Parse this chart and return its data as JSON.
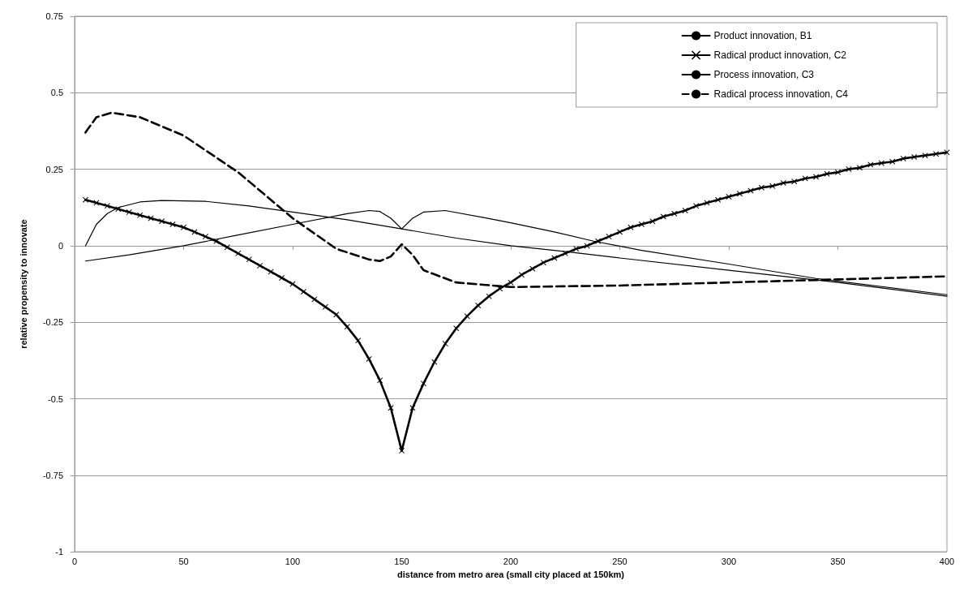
{
  "chart_data": {
    "type": "line",
    "xlabel": "distance from metro area (small city placed at 150km)",
    "ylabel": "relative propensity to innovate",
    "xlim": [
      0,
      400
    ],
    "xticks": [
      0,
      50,
      100,
      150,
      200,
      250,
      300,
      350,
      400
    ],
    "ylim": [
      -1,
      0.75
    ],
    "yticks": [
      -1,
      -0.75,
      -0.5,
      -0.25,
      0,
      0.25,
      0.5,
      0.75
    ],
    "grid": "y",
    "legend": "top right",
    "series": [
      {
        "name": "Product innovation, B1",
        "color": "#000000",
        "line_style": "solid",
        "marker": "none",
        "x": [
          5,
          10,
          15,
          20,
          30,
          40,
          60,
          80,
          100,
          125,
          150,
          175,
          200,
          226,
          250,
          300,
          350,
          400
        ],
        "values": [
          0.0,
          0.07,
          0.105,
          0.125,
          0.143,
          0.148,
          0.145,
          0.13,
          0.11,
          0.085,
          0.055,
          0.025,
          0.0,
          -0.02,
          -0.04,
          -0.08,
          -0.12,
          -0.165
        ]
      },
      {
        "name": "Radical product innovation, C2",
        "color": "#000000",
        "line_style": "solid",
        "marker": "cross",
        "x": [
          5,
          10,
          15,
          20,
          25,
          30,
          35,
          40,
          45,
          50,
          55,
          60,
          65,
          70,
          75,
          80,
          85,
          90,
          95,
          100,
          105,
          110,
          115,
          120,
          125,
          130,
          135,
          140,
          145,
          150,
          155,
          160,
          165,
          170,
          175,
          180,
          185,
          190,
          195,
          200,
          205,
          210,
          215,
          220,
          225,
          230,
          235,
          240,
          245,
          250,
          255,
          260,
          265,
          270,
          275,
          280,
          285,
          290,
          295,
          300,
          305,
          310,
          315,
          320,
          325,
          330,
          335,
          340,
          345,
          350,
          355,
          360,
          365,
          370,
          375,
          380,
          385,
          390,
          395,
          400
        ],
        "values": [
          0.15,
          0.14,
          0.13,
          0.12,
          0.11,
          0.1,
          0.09,
          0.08,
          0.07,
          0.06,
          0.045,
          0.03,
          0.015,
          -0.005,
          -0.025,
          -0.045,
          -0.065,
          -0.085,
          -0.105,
          -0.125,
          -0.15,
          -0.175,
          -0.2,
          -0.225,
          -0.265,
          -0.31,
          -0.37,
          -0.44,
          -0.53,
          -0.67,
          -0.53,
          -0.45,
          -0.38,
          -0.32,
          -0.27,
          -0.23,
          -0.195,
          -0.165,
          -0.14,
          -0.12,
          -0.095,
          -0.075,
          -0.055,
          -0.04,
          -0.025,
          -0.01,
          0.0,
          0.015,
          0.03,
          0.045,
          0.06,
          0.07,
          0.08,
          0.095,
          0.105,
          0.115,
          0.13,
          0.14,
          0.15,
          0.16,
          0.17,
          0.18,
          0.19,
          0.195,
          0.205,
          0.21,
          0.22,
          0.225,
          0.235,
          0.24,
          0.25,
          0.255,
          0.265,
          0.27,
          0.275,
          0.285,
          0.29,
          0.295,
          0.3,
          0.305
        ]
      },
      {
        "name": "Process innovation, C3",
        "color": "#000000",
        "line_style": "solid",
        "marker": "none",
        "x": [
          5,
          25,
          50,
          75,
          100,
          125,
          135,
          140,
          145,
          150,
          155,
          160,
          170,
          189,
          200,
          220,
          238,
          260,
          300,
          340,
          400
        ],
        "values": [
          -0.05,
          -0.03,
          0.0,
          0.035,
          0.07,
          0.105,
          0.115,
          0.112,
          0.09,
          0.055,
          0.09,
          0.11,
          0.115,
          0.09,
          0.075,
          0.045,
          0.015,
          -0.015,
          -0.06,
          -0.107,
          -0.16
        ]
      },
      {
        "name": "Radical process innovation, C4",
        "color": "#000000",
        "line_style": "dashed",
        "marker": "none",
        "x": [
          5,
          10,
          17,
          30,
          50,
          75,
          100,
          120,
          135,
          140,
          145,
          150,
          155,
          160,
          175,
          200,
          250,
          300,
          350,
          400
        ],
        "values": [
          0.37,
          0.42,
          0.435,
          0.42,
          0.36,
          0.24,
          0.09,
          -0.01,
          -0.045,
          -0.05,
          -0.035,
          0.005,
          -0.03,
          -0.08,
          -0.12,
          -0.135,
          -0.13,
          -0.12,
          -0.11,
          -0.1
        ]
      }
    ]
  }
}
